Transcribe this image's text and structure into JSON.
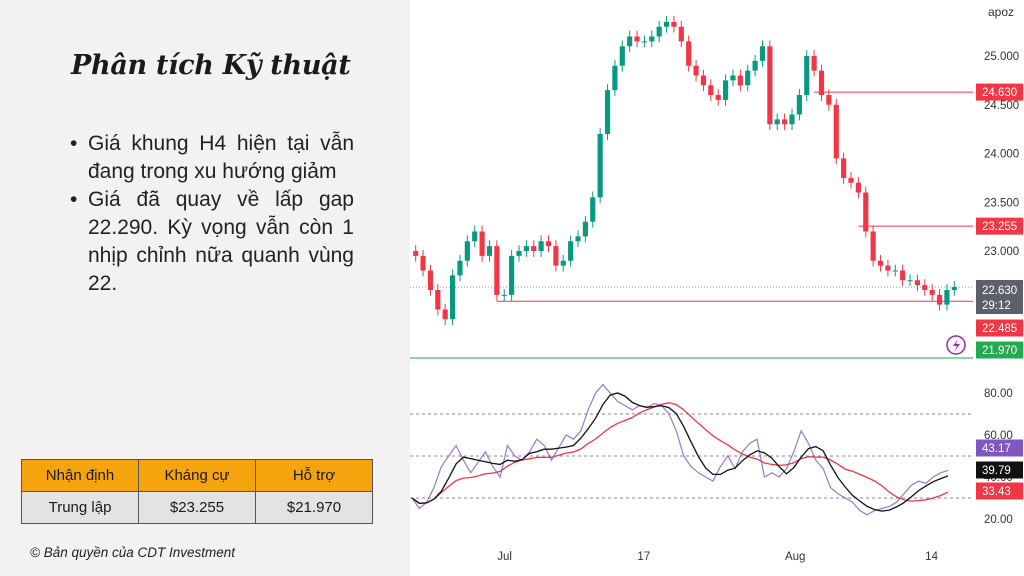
{
  "slide": {
    "title": "Phân tích Kỹ thuật",
    "bullets": [
      "Giá khung H4 hiện tại vẫn đang trong xu hướng giảm",
      "Giá đã quay về lấp gap 22.290. Kỳ vọng vẫn còn 1 nhịp chỉnh nữa quanh vùng 22."
    ],
    "table": {
      "headers": [
        "Nhận định",
        "Kháng cự",
        "Hỗ trợ"
      ],
      "row": [
        "Trung lập",
        "$23.255",
        "$21.970"
      ]
    },
    "copyright": "© Bản quyền của CDT Investment"
  },
  "chart_data": {
    "type": "candlestick",
    "top_label": "apoz",
    "price_axis": {
      "ticks": [
        25.0,
        24.5,
        24.0,
        23.5,
        23.0
      ],
      "tick_labels": [
        "25.000",
        "24.500",
        "24.000",
        "23.500",
        "23.000"
      ],
      "ylim": [
        21.86,
        25.45
      ]
    },
    "x_ticks": [
      {
        "label": "Jul",
        "index": 12
      },
      {
        "label": "17",
        "index": 31
      },
      {
        "label": "Aug",
        "index": 51
      },
      {
        "label": "14",
        "index": 70
      }
    ],
    "horizontal_levels": [
      {
        "value": 24.63,
        "label": "24.630",
        "color": "#f23645",
        "start_index": 54
      },
      {
        "value": 23.255,
        "label": "23.255",
        "color": "#f23645",
        "start_index": 60
      },
      {
        "value": 22.485,
        "label": "22.485",
        "color": "#f23645",
        "start_index": 11
      },
      {
        "value": 21.97,
        "label": "21.970",
        "color": "#22ab4f",
        "start_index": 0
      }
    ],
    "current_price": {
      "value": 22.63,
      "label": "22.630",
      "countdown": "29:12"
    },
    "closes": [
      22.95,
      22.8,
      22.6,
      22.4,
      22.3,
      22.75,
      22.9,
      23.1,
      23.2,
      22.95,
      23.05,
      22.55,
      22.55,
      22.95,
      23.0,
      23.05,
      23.0,
      23.1,
      23.05,
      22.85,
      22.9,
      23.1,
      23.15,
      23.3,
      23.55,
      24.2,
      24.65,
      24.9,
      25.1,
      25.2,
      25.15,
      25.15,
      25.2,
      25.3,
      25.35,
      25.3,
      25.15,
      24.9,
      24.8,
      24.7,
      24.6,
      24.55,
      24.75,
      24.8,
      24.7,
      24.85,
      24.95,
      25.1,
      24.3,
      24.35,
      24.3,
      24.4,
      24.6,
      25.0,
      24.85,
      24.6,
      24.5,
      23.95,
      23.75,
      23.7,
      23.6,
      23.2,
      22.9,
      22.85,
      22.8,
      22.8,
      22.7,
      22.7,
      22.65,
      22.6,
      22.55,
      22.45,
      22.6,
      22.63
    ],
    "rsi": {
      "ylim": [
        15,
        88
      ],
      "ticks": [
        80,
        60,
        40,
        20
      ],
      "tick_labels": [
        "80.00",
        "60.00",
        "40.00",
        "20.00"
      ],
      "levels": [
        70,
        50,
        30
      ],
      "rsi_values": [
        30,
        25,
        28,
        35,
        45,
        50,
        55,
        48,
        42,
        47,
        52,
        45,
        40,
        55,
        50,
        48,
        52,
        58,
        55,
        48,
        54,
        60,
        58,
        62,
        72,
        80,
        84,
        80,
        76,
        74,
        72,
        74,
        73,
        75,
        74,
        70,
        62,
        50,
        45,
        42,
        40,
        38,
        45,
        50,
        44,
        52,
        56,
        58,
        40,
        42,
        40,
        44,
        52,
        62,
        56,
        48,
        44,
        35,
        32,
        30,
        28,
        24,
        22,
        24,
        25,
        26,
        28,
        32,
        36,
        38,
        37,
        40,
        42,
        43.17
      ],
      "current": {
        "rsi": "43.17",
        "ma": "39.79",
        "bb_lower": "33.43"
      }
    },
    "colors": {
      "up": "#089981",
      "down": "#f23645",
      "rsi": "#7e57c2",
      "rsi_ma": "#111111",
      "bb": "#f23645"
    }
  }
}
